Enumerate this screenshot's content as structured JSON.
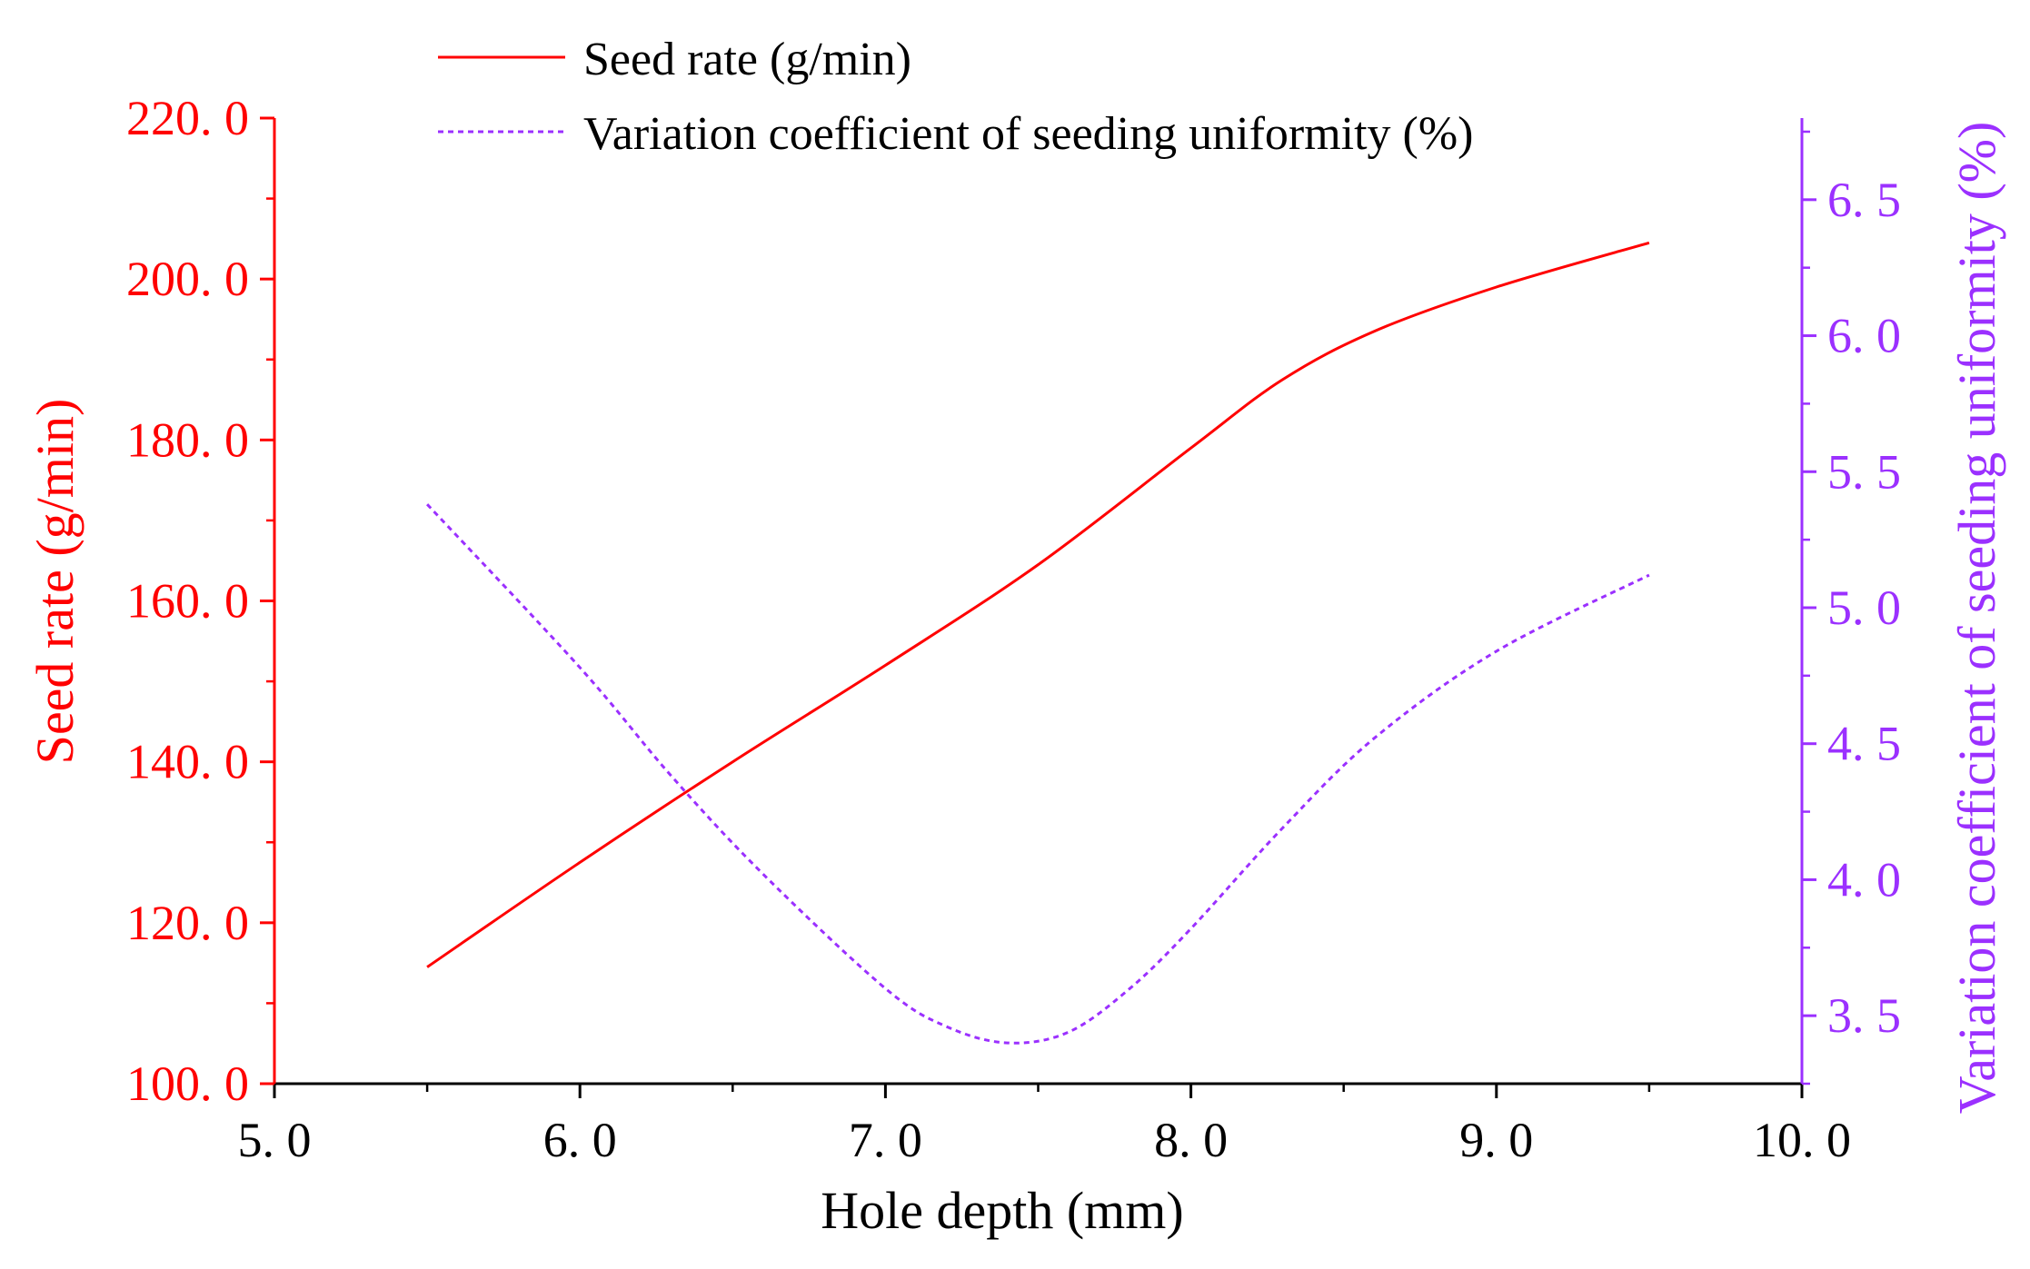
{
  "chart_data": {
    "type": "line",
    "title": "",
    "xlabel": "Hole depth (mm)",
    "ylabel": "Seed rate (g/min)",
    "y2label": "Variation coefficient of seeding uniformity (%)",
    "xlim": [
      5.0,
      10.0
    ],
    "ylim": [
      100.0,
      220.0
    ],
    "y2lim": [
      3.25,
      6.8
    ],
    "x_ticks": [
      "5. 0",
      "6. 0",
      "7. 0",
      "8. 0",
      "9. 0",
      "10. 0"
    ],
    "y_ticks": [
      "100. 0",
      "120. 0",
      "140. 0",
      "160. 0",
      "180. 0",
      "200. 0",
      "220. 0"
    ],
    "y2_ticks": [
      "3. 5",
      "4. 0",
      "4. 5",
      "5. 0",
      "5. 5",
      "6. 0",
      "6. 5"
    ],
    "legend_position": "top",
    "colors": {
      "seed_rate": "#ff0000",
      "variation": "#9b30ff",
      "axis": "#000000"
    },
    "series": [
      {
        "name": "Seed rate (g/min)",
        "axis": "left",
        "style": "solid",
        "x": [
          5.5,
          6.0,
          6.5,
          7.0,
          7.5,
          8.0,
          8.3,
          8.6,
          9.0,
          9.5
        ],
        "values": [
          114.5,
          127.5,
          140.0,
          152.0,
          164.5,
          179.0,
          187.5,
          193.5,
          199.0,
          204.5
        ]
      },
      {
        "name": "Variation coefficient of seeding uniformity (%)",
        "axis": "right",
        "style": "dashed",
        "x": [
          5.5,
          6.0,
          6.3,
          6.6,
          7.0,
          7.2,
          7.4,
          7.6,
          7.8,
          8.0,
          8.3,
          8.6,
          9.0,
          9.5
        ],
        "values": [
          5.38,
          4.78,
          4.38,
          4.02,
          3.6,
          3.46,
          3.4,
          3.44,
          3.6,
          3.82,
          4.19,
          4.52,
          4.84,
          5.12
        ]
      }
    ]
  }
}
